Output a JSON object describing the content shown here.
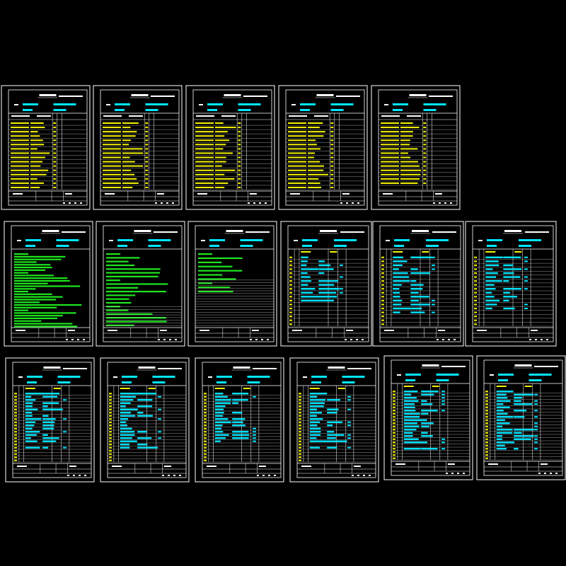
{
  "sheet_set": {
    "rows": [
      {
        "sheets": [
          {
            "kind": "catalog",
            "rows": 16,
            "text_color": "#f5f500"
          },
          {
            "kind": "catalog",
            "rows": 16,
            "text_color": "#f5f500"
          },
          {
            "kind": "catalog",
            "rows": 16,
            "text_color": "#f5f500"
          },
          {
            "kind": "catalog",
            "rows": 16,
            "text_color": "#f5f500"
          },
          {
            "kind": "catalog",
            "rows": 16,
            "text_color": "#f5f500"
          }
        ]
      },
      {
        "sheets": [
          {
            "kind": "notes",
            "lines": 28,
            "text_color": "#1ee61e"
          },
          {
            "kind": "notes",
            "lines": 20,
            "text_color": "#1ee61e"
          },
          {
            "kind": "notes",
            "lines": 10,
            "text_color": "#1ee61e"
          },
          {
            "kind": "list",
            "rows": 18,
            "text_color": "#00e6ff"
          },
          {
            "kind": "list",
            "rows": 18,
            "text_color": "#00e6ff"
          },
          {
            "kind": "list",
            "rows": 18,
            "text_color": "#00e6ff"
          }
        ]
      },
      {
        "sheets": [
          {
            "kind": "list",
            "rows": 22,
            "text_color": "#00e6ff"
          },
          {
            "kind": "list",
            "rows": 22,
            "text_color": "#00e6ff"
          },
          {
            "kind": "list",
            "rows": 22,
            "text_color": "#00e6ff"
          },
          {
            "kind": "list",
            "rows": 22,
            "text_color": "#00e6ff"
          },
          {
            "kind": "list",
            "rows": 22,
            "text_color": "#00e6ff"
          },
          {
            "kind": "list",
            "rows": 22,
            "text_color": "#00e6ff"
          }
        ]
      }
    ]
  },
  "colors": {
    "background": "#000000",
    "frame": "#ffffff",
    "title_text": "#ffffff",
    "header_cyan": "#00e6ff",
    "body_yellow": "#f5f500",
    "body_green": "#1ee61e",
    "body_cyan": "#00e6ff"
  }
}
